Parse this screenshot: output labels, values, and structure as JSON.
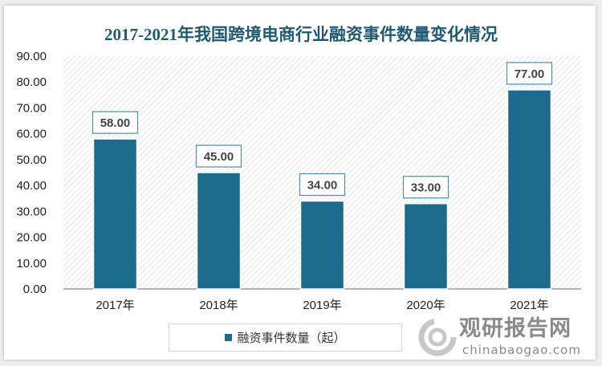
{
  "chart_data": {
    "type": "bar",
    "title": "2017-2021年我国跨境电商行业融资事件数量变化情况",
    "categories": [
      "2017年",
      "2018年",
      "2019年",
      "2020年",
      "2021年"
    ],
    "series": [
      {
        "name": "融资事件数量（起）",
        "values": [
          58,
          45,
          34,
          33,
          77
        ]
      }
    ],
    "data_labels": [
      "58.00",
      "45.00",
      "34.00",
      "33.00",
      "77.00"
    ],
    "ylim": [
      0,
      90
    ],
    "yticks": [
      "0.00",
      "10.00",
      "20.00",
      "30.00",
      "40.00",
      "50.00",
      "60.00",
      "70.00",
      "80.00",
      "90.00"
    ],
    "grid": false,
    "legend_position": "bottom",
    "colors": {
      "bar": "#1c6a8c",
      "title": "#1f5a72",
      "label_border": "#4f8ea8"
    }
  },
  "watermark": {
    "cn": "观研报告网",
    "en": "chinabaogao.com"
  }
}
